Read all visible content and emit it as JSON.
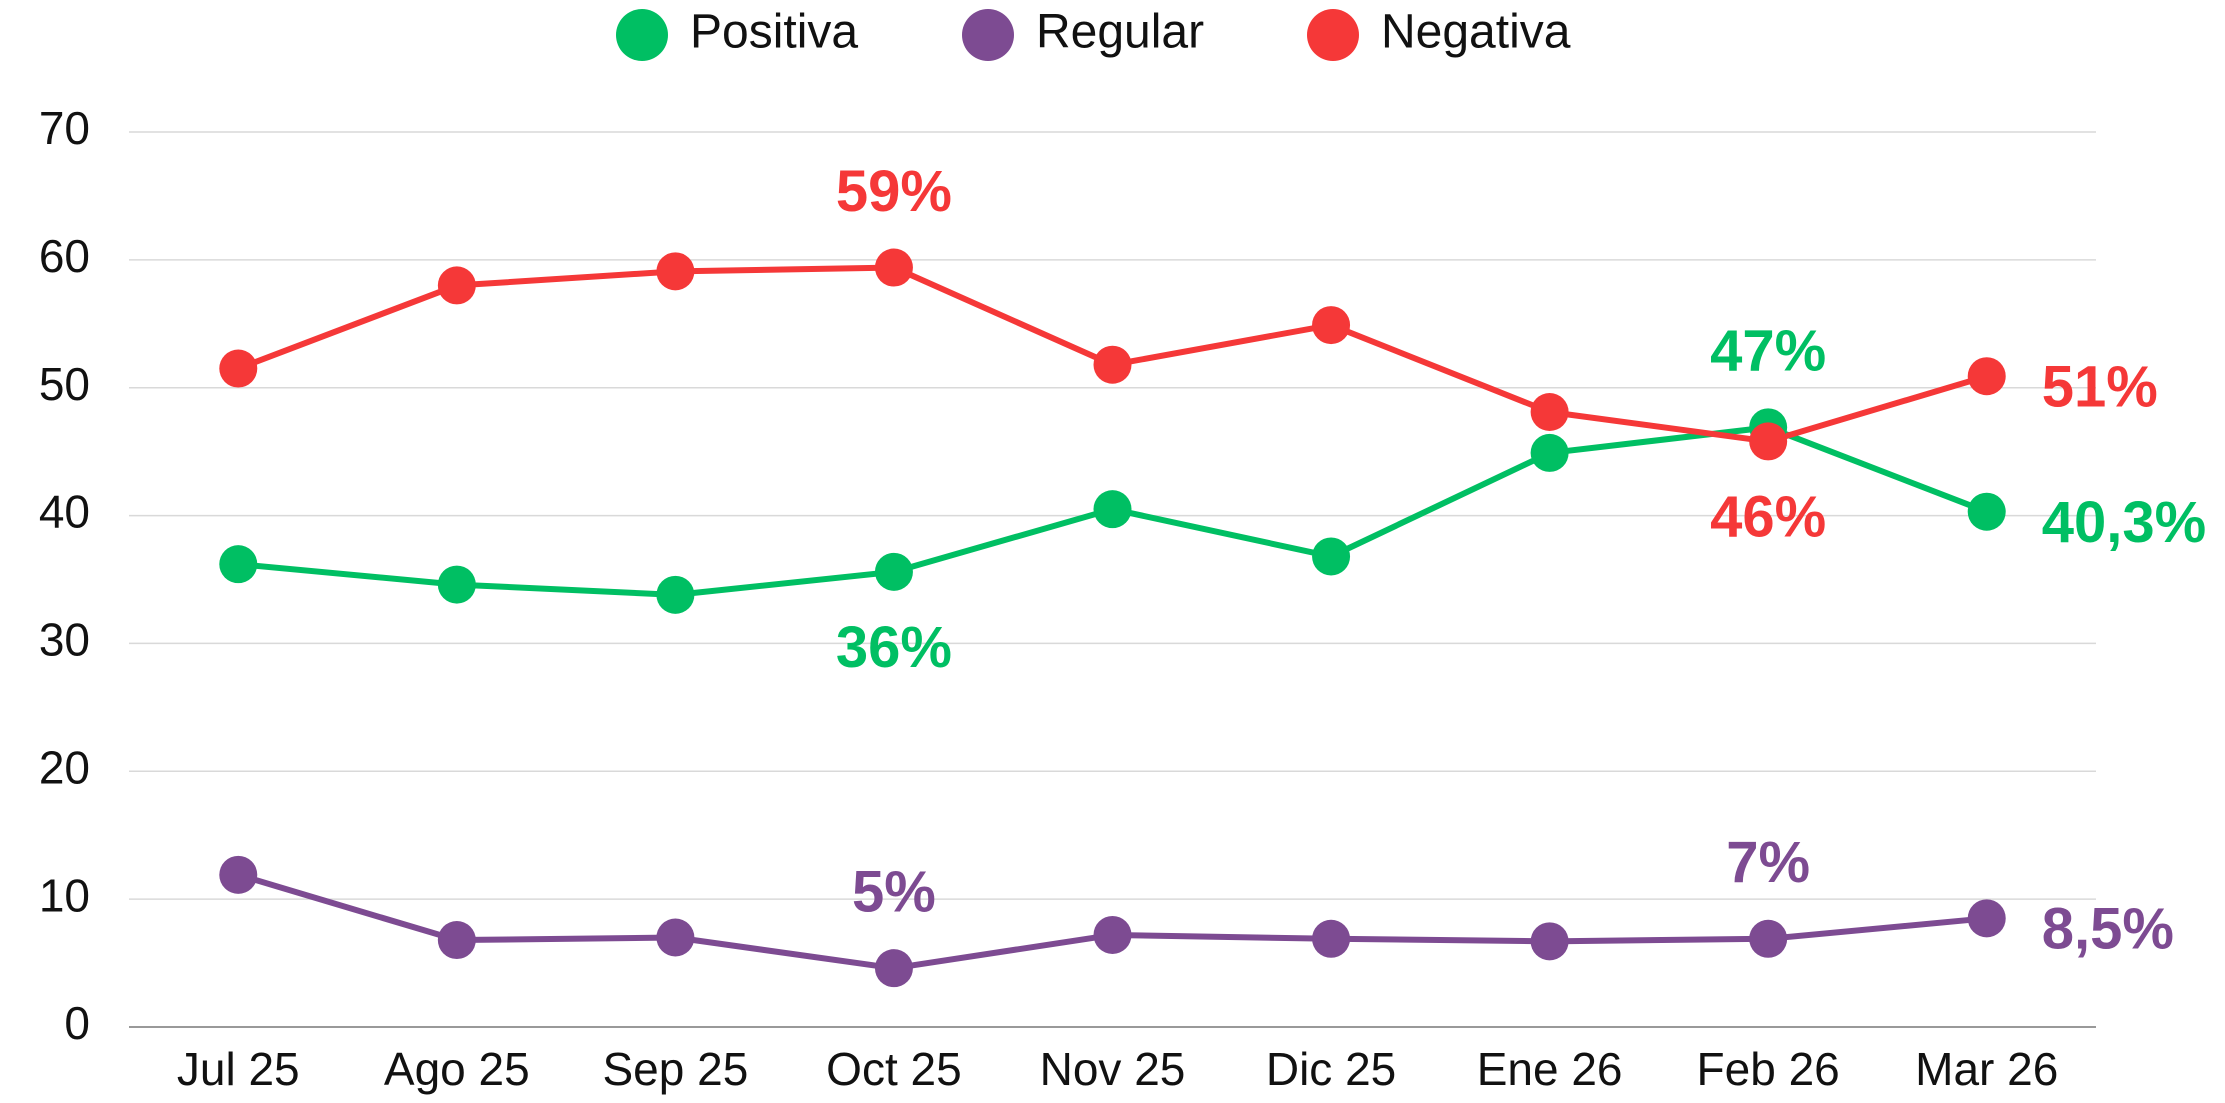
{
  "chart_data": {
    "type": "line",
    "categories": [
      "Jul 25",
      "Ago 25",
      "Sep 25",
      "Oct 25",
      "Nov 25",
      "Dic 25",
      "Ene 26",
      "Feb 26",
      "Mar 26"
    ],
    "series": [
      {
        "name": "Positiva",
        "color": "#00bf63",
        "values": [
          36.2,
          34.6,
          33.8,
          35.6,
          40.5,
          36.8,
          44.9,
          46.9,
          40.3
        ],
        "value_labels": [
          null,
          null,
          null,
          "36%",
          null,
          null,
          null,
          "47%",
          "40,3%"
        ]
      },
      {
        "name": "Regular",
        "color": "#7d4b92",
        "values": [
          11.9,
          6.8,
          7.0,
          4.6,
          7.2,
          6.9,
          6.7,
          6.9,
          8.5
        ],
        "value_labels": [
          null,
          null,
          null,
          "5%",
          null,
          null,
          null,
          "7%",
          "8,5%"
        ]
      },
      {
        "name": "Negativa",
        "color": "#f53838",
        "values": [
          51.5,
          58.0,
          59.1,
          59.4,
          51.8,
          54.9,
          48.1,
          45.8,
          50.9
        ],
        "value_labels": [
          null,
          null,
          null,
          "59%",
          null,
          null,
          null,
          "46%",
          "51%"
        ]
      }
    ],
    "ylim": [
      0,
      70
    ],
    "yticks": [
      0,
      10,
      20,
      30,
      40,
      50,
      60,
      70
    ],
    "grid": true,
    "legend": "top"
  }
}
